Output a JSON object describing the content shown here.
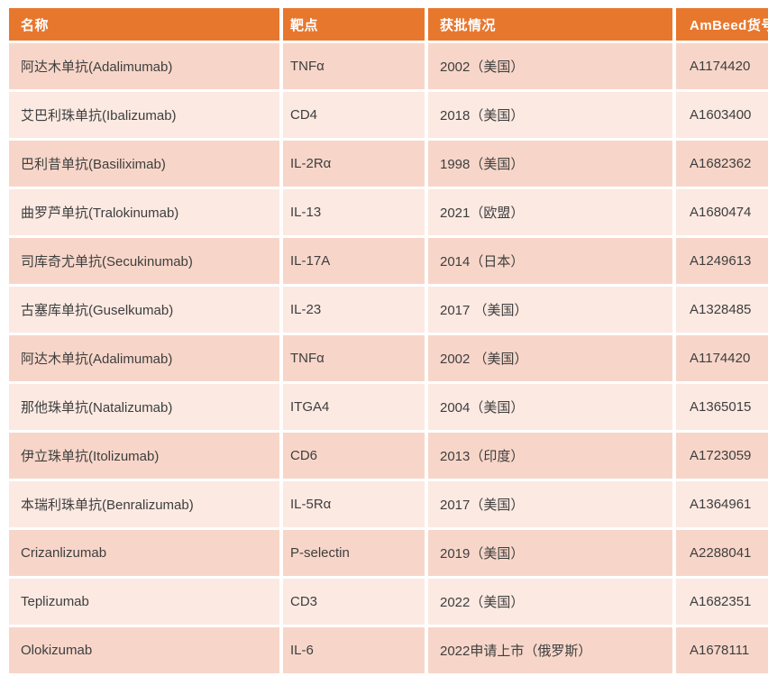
{
  "chart_data": {
    "type": "table",
    "title": "",
    "columns": [
      "名称",
      "靶点",
      "获批情况",
      "AmBeed货号"
    ],
    "column_keys": [
      "name",
      "target",
      "approval",
      "catalog"
    ],
    "rows": [
      [
        "阿达木单抗(Adalimumab)",
        "TNFα",
        "2002（美国）",
        "A1174420"
      ],
      [
        "艾巴利珠单抗(Ibalizumab)",
        "CD4",
        "2018（美国）",
        "A1603400"
      ],
      [
        "巴利昔单抗(Basiliximab)",
        "IL-2Rα",
        "1998（美国）",
        "A1682362"
      ],
      [
        "曲罗芦单抗(Tralokinumab)",
        "IL-13",
        "2021（欧盟）",
        "A1680474"
      ],
      [
        "司库奇尤单抗(Secukinumab)",
        "IL-17A",
        "2014（日本）",
        "A1249613"
      ],
      [
        "古塞库单抗(Guselkumab)",
        "IL-23",
        "2017 （美国）",
        "A1328485"
      ],
      [
        "阿达木单抗(Adalimumab)",
        "TNFα",
        "2002 （美国）",
        "A1174420"
      ],
      [
        "那他珠单抗(Natalizumab)",
        "ITGA4",
        "2004（美国）",
        "A1365015"
      ],
      [
        "伊立珠单抗(Itolizumab)",
        "CD6",
        "2013（印度）",
        "A1723059"
      ],
      [
        "本瑞利珠单抗(Benralizumab)",
        "IL-5Rα",
        "2017（美国）",
        "A1364961"
      ],
      [
        "Crizanlizumab",
        "P-selectin",
        "2019（美国）",
        "A2288041"
      ],
      [
        "Teplizumab",
        "CD3",
        "2022（美国）",
        "A1682351"
      ],
      [
        "Olokizumab",
        "IL-6",
        "2022申请上市（俄罗斯）",
        "A1678111"
      ]
    ],
    "layout": {
      "banding": "odd-rows-dark",
      "grid": "white-gaps"
    },
    "colors": {
      "header_bg": "#E8772E",
      "header_text": "#FFFFFF",
      "row_odd_bg": "#F7D6C9",
      "row_even_bg": "#FBE9E2",
      "cell_text": "#3E3E3E",
      "grid": "#FFFFFF"
    }
  }
}
